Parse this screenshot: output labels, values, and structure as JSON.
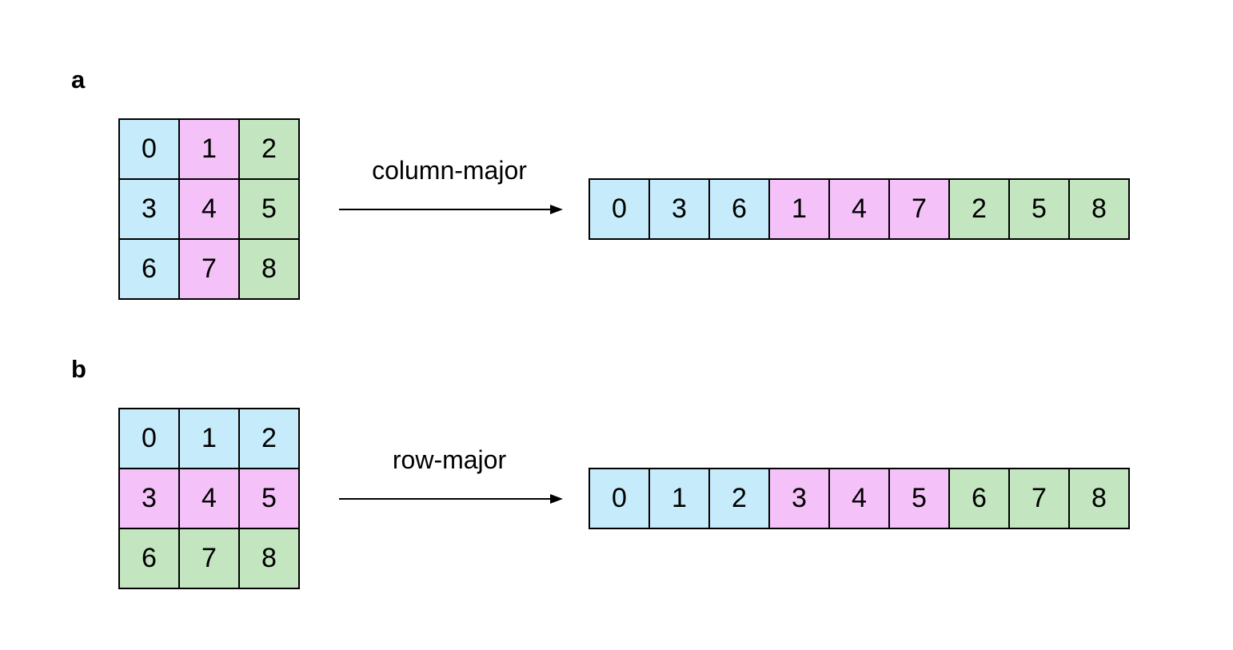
{
  "colors": {
    "blue": "#c6ebfb",
    "pink": "#f4c1f9",
    "green": "#c3e6c0"
  },
  "panels": [
    {
      "label": "a",
      "arrow_label": "column-major",
      "grid": [
        {
          "text": "0",
          "color": "blue"
        },
        {
          "text": "1",
          "color": "pink"
        },
        {
          "text": "2",
          "color": "green"
        },
        {
          "text": "3",
          "color": "blue"
        },
        {
          "text": "4",
          "color": "pink"
        },
        {
          "text": "5",
          "color": "green"
        },
        {
          "text": "6",
          "color": "blue"
        },
        {
          "text": "7",
          "color": "pink"
        },
        {
          "text": "8",
          "color": "green"
        }
      ],
      "array": [
        {
          "text": "0",
          "color": "blue"
        },
        {
          "text": "3",
          "color": "blue"
        },
        {
          "text": "6",
          "color": "blue"
        },
        {
          "text": "1",
          "color": "pink"
        },
        {
          "text": "4",
          "color": "pink"
        },
        {
          "text": "7",
          "color": "pink"
        },
        {
          "text": "2",
          "color": "green"
        },
        {
          "text": "5",
          "color": "green"
        },
        {
          "text": "8",
          "color": "green"
        }
      ]
    },
    {
      "label": "b",
      "arrow_label": "row-major",
      "grid": [
        {
          "text": "0",
          "color": "blue"
        },
        {
          "text": "1",
          "color": "blue"
        },
        {
          "text": "2",
          "color": "blue"
        },
        {
          "text": "3",
          "color": "pink"
        },
        {
          "text": "4",
          "color": "pink"
        },
        {
          "text": "5",
          "color": "pink"
        },
        {
          "text": "6",
          "color": "green"
        },
        {
          "text": "7",
          "color": "green"
        },
        {
          "text": "8",
          "color": "green"
        }
      ],
      "array": [
        {
          "text": "0",
          "color": "blue"
        },
        {
          "text": "1",
          "color": "blue"
        },
        {
          "text": "2",
          "color": "blue"
        },
        {
          "text": "3",
          "color": "pink"
        },
        {
          "text": "4",
          "color": "pink"
        },
        {
          "text": "5",
          "color": "pink"
        },
        {
          "text": "6",
          "color": "green"
        },
        {
          "text": "7",
          "color": "green"
        },
        {
          "text": "8",
          "color": "green"
        }
      ]
    }
  ]
}
